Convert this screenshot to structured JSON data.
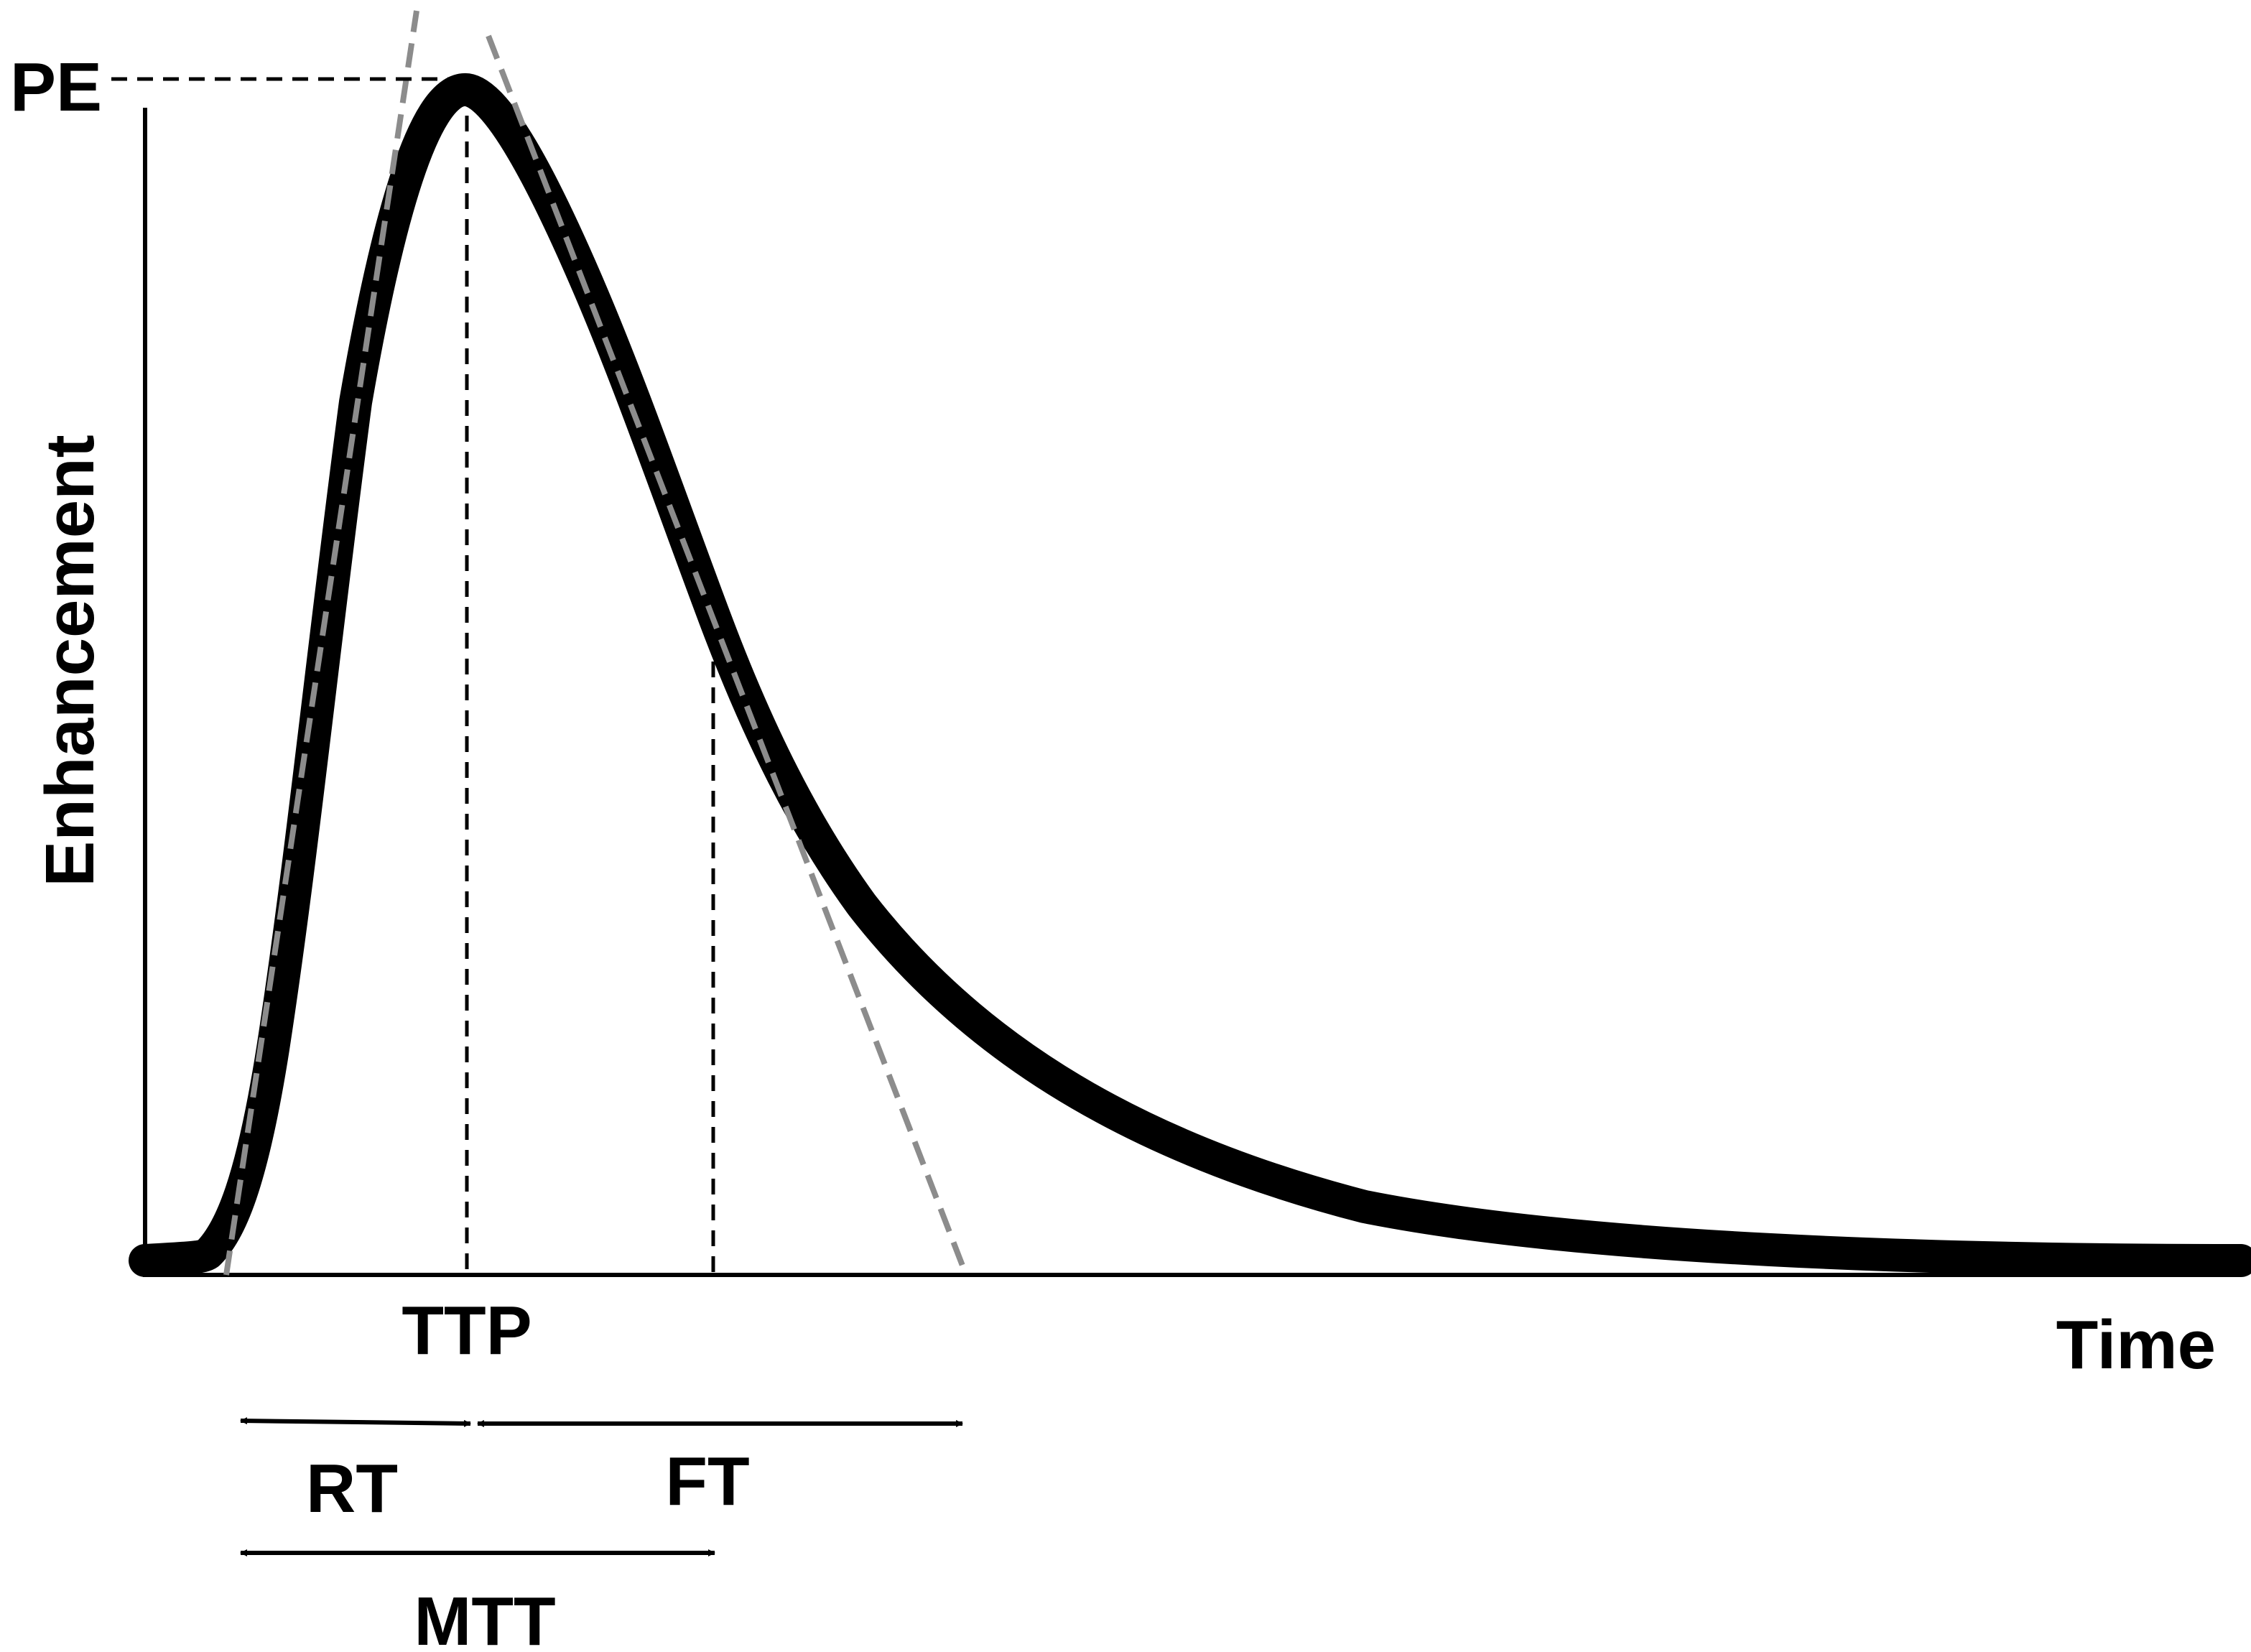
{
  "labels": {
    "peak": "PE",
    "y_axis": "Enhancement",
    "x_axis": "Time",
    "ttp": "TTP",
    "rt": "RT",
    "ft": "FT",
    "mtt": "MTT"
  },
  "colors": {
    "curve": "#000000",
    "tangent": "#8c8c8c",
    "guide": "#000000",
    "background": "#ffffff"
  }
}
